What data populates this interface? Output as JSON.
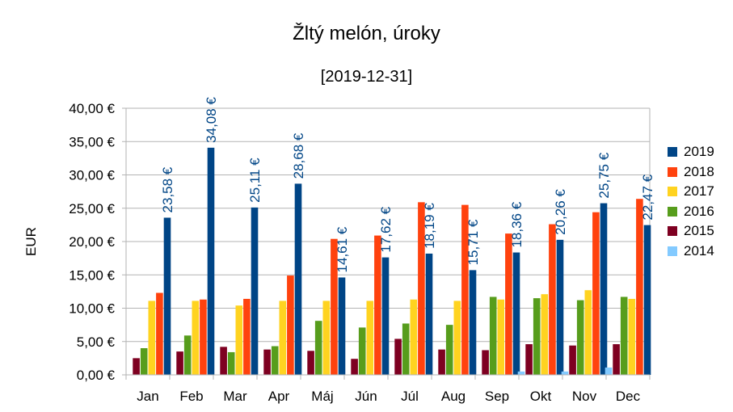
{
  "chart_data": {
    "type": "bar",
    "title": "Žltý melón, úroky",
    "subtitle": "[2019-12-31]",
    "ylabel": "EUR",
    "xlabel": "",
    "ylim": [
      0,
      40
    ],
    "ytick_step": 5,
    "ytick_labels": [
      "0,00 €",
      "5,00 €",
      "10,00 €",
      "15,00 €",
      "20,00 €",
      "25,00 €",
      "30,00 €",
      "35,00 €",
      "40,00 €"
    ],
    "grid": true,
    "legend_position": "right",
    "categories": [
      "Jan",
      "Feb",
      "Mar",
      "Apr",
      "Máj",
      "Jún",
      "Júl",
      "Aug",
      "Sep",
      "Okt",
      "Nov",
      "Dec"
    ],
    "series": [
      {
        "name": "2014",
        "color": "#83caff",
        "values": [
          0,
          0,
          0,
          0,
          0,
          0,
          0,
          0,
          0,
          0.5,
          0.5,
          1.1
        ]
      },
      {
        "name": "2015",
        "color": "#7e0021",
        "values": [
          2.5,
          3.5,
          4.2,
          3.8,
          3.6,
          2.4,
          5.4,
          3.8,
          3.7,
          4.6,
          4.4,
          4.6
        ]
      },
      {
        "name": "2016",
        "color": "#579d1c",
        "values": [
          4.0,
          5.9,
          3.4,
          4.3,
          8.1,
          7.1,
          7.7,
          7.5,
          11.7,
          11.5,
          11.2,
          11.7
        ]
      },
      {
        "name": "2017",
        "color": "#ffd320",
        "values": [
          11.1,
          11.1,
          10.4,
          11.1,
          11.1,
          11.1,
          11.3,
          11.1,
          11.3,
          12.1,
          12.7,
          11.4
        ]
      },
      {
        "name": "2018",
        "color": "#ff420e",
        "values": [
          12.3,
          11.3,
          11.4,
          14.9,
          20.4,
          20.9,
          25.9,
          25.5,
          21.2,
          22.6,
          24.4,
          26.4
        ]
      },
      {
        "name": "2019",
        "color": "#004586",
        "values": [
          23.58,
          34.08,
          25.11,
          28.68,
          14.61,
          17.62,
          18.19,
          15.71,
          18.36,
          20.26,
          25.75,
          22.47
        ],
        "data_labels": [
          "23,58 €",
          "34,08 €",
          "25,11 €",
          "28,68 €",
          "14,61 €",
          "17,62 €",
          "18,19 €",
          "15,71 €",
          "18,36 €",
          "20,26 €",
          "25,75 €",
          "22,47 €"
        ],
        "label_color": "#004586"
      }
    ],
    "legend_order": [
      "2019",
      "2018",
      "2017",
      "2016",
      "2015",
      "2014"
    ]
  }
}
